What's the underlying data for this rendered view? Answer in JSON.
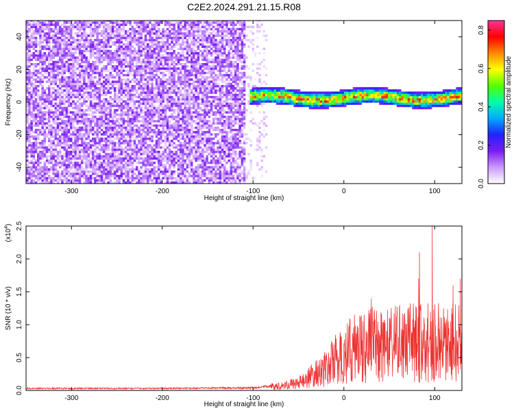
{
  "chart_data": [
    {
      "type": "heatmap",
      "title": "C2E2.2024.291.21.15.R08",
      "xlabel": "Height of straight line (km)",
      "ylabel": "Frequency (Hz)",
      "xlim": [
        -350,
        130
      ],
      "ylim": [
        -50,
        50
      ],
      "xticks": [
        -300,
        -200,
        -100,
        0,
        100
      ],
      "yticks": [
        -40,
        -20,
        0,
        20,
        40
      ],
      "grid": false,
      "colorbar": {
        "label": "Normalized spectral amplitude",
        "range": [
          0.0,
          0.85
        ],
        "ticks": [
          0.0,
          0.2,
          0.4,
          0.6,
          0.8
        ],
        "colors": [
          "#ffffff",
          "#cc99ff",
          "#7a1cf0",
          "#2222ff",
          "#00aaff",
          "#00ffaa",
          "#55ff00",
          "#ffff00",
          "#ff8800",
          "#ff0000",
          "#ff3399"
        ]
      },
      "regions": [
        {
          "x_range": [
            -350,
            -110
          ],
          "freq_range": [
            -50,
            50
          ],
          "pattern": "broadband noise",
          "amplitude": 0.1
        },
        {
          "x_range": [
            -110,
            -85
          ],
          "freq_range": [
            -50,
            50
          ],
          "pattern": "sparse noise",
          "amplitude": 0.05
        },
        {
          "x_range": [
            -105,
            130
          ],
          "freq_center": 2,
          "freq_halfwidth": 5,
          "pattern": "narrow signal band",
          "amplitude": 0.45
        }
      ]
    },
    {
      "type": "line",
      "title": "",
      "xlabel": "Height of straight line (km)",
      "ylabel": "SNR (10 * v/v)",
      "y_multiplier": "(x10",
      "y_multiplier_exp": "4",
      "xlim": [
        -350,
        130
      ],
      "ylim": [
        0,
        2.5
      ],
      "xticks": [
        -300,
        -200,
        -100,
        0,
        100
      ],
      "yticks": [
        "0.0",
        "0.5",
        "1.0",
        "1.5",
        "2.0",
        "2.5"
      ],
      "grid": false,
      "color": "#ee3333",
      "envelope": [
        {
          "x": -350,
          "y": 0.03
        },
        {
          "x": -300,
          "y": 0.03
        },
        {
          "x": -200,
          "y": 0.03
        },
        {
          "x": -100,
          "y": 0.04
        },
        {
          "x": -75,
          "y": 0.07
        },
        {
          "x": -50,
          "y": 0.12
        },
        {
          "x": -40,
          "y": 0.2
        },
        {
          "x": -20,
          "y": 0.35
        },
        {
          "x": -10,
          "y": 0.5
        },
        {
          "x": 0,
          "y": 0.55
        },
        {
          "x": 10,
          "y": 0.7
        },
        {
          "x": 30,
          "y": 0.75
        },
        {
          "x": 50,
          "y": 0.75
        },
        {
          "x": 70,
          "y": 0.78
        },
        {
          "x": 90,
          "y": 0.8
        },
        {
          "x": 110,
          "y": 0.78
        },
        {
          "x": 130,
          "y": 0.8
        }
      ],
      "peaks": [
        {
          "x": 30,
          "y": 1.4
        },
        {
          "x": 82,
          "y": 1.7
        },
        {
          "x": 83,
          "y": 2.1
        },
        {
          "x": 97,
          "y": 2.5
        },
        {
          "x": 120,
          "y": 1.6
        },
        {
          "x": 128,
          "y": 1.7
        }
      ]
    }
  ]
}
